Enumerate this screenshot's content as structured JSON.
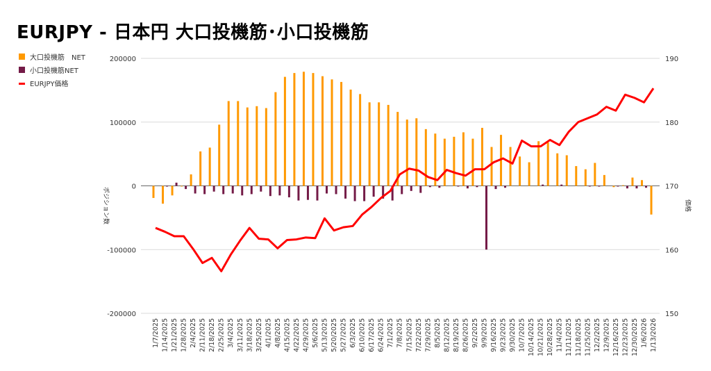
{
  "chart_data": {
    "type": "bar+line",
    "title": "EURJPY - 日本円 大口投機筋･小口投機筋",
    "ylabel": "ポジション数",
    "y2label": "価格",
    "ylim": [
      -200000,
      200000
    ],
    "y2lim": [
      150,
      190
    ],
    "yticks": [
      "200000",
      "100000",
      "0",
      "-100000",
      "-200000"
    ],
    "y2ticks": [
      "190",
      "180",
      "170",
      "160",
      "150"
    ],
    "grid": true,
    "legend_position": "left",
    "categories": [
      "1/7/2025",
      "1/14/2025",
      "1/21/2025",
      "1/28/2025",
      "2/4/2025",
      "2/11/2025",
      "2/18/2025",
      "2/25/2025",
      "3/4/2025",
      "3/11/2025",
      "3/18/2025",
      "3/25/2025",
      "4/1/2025",
      "4/8/2025",
      "4/15/2025",
      "4/22/2025",
      "4/29/2025",
      "5/6/2025",
      "5/13/2025",
      "5/20/2025",
      "5/27/2025",
      "6/3/2025",
      "6/10/2025",
      "6/17/2025",
      "6/24/2025",
      "7/1/2025",
      "7/8/2025",
      "7/15/2025",
      "7/22/2025",
      "7/29/2025",
      "8/5/2025",
      "8/12/2025",
      "8/19/2025",
      "8/26/2025",
      "9/2/2025",
      "9/9/2025",
      "9/16/2025",
      "9/23/2025",
      "9/30/2025",
      "10/7/2025",
      "10/14/2025",
      "10/21/2025",
      "10/28/2025",
      "11/4/2025",
      "11/11/2025",
      "11/18/2025",
      "11/25/2025",
      "12/2/2025",
      "12/9/2025",
      "12/16/2025",
      "12/23/2025",
      "12/30/2025",
      "1/6/2026",
      "1/13/2026"
    ],
    "series": [
      {
        "name": "大口投機筋　NET",
        "type": "bar",
        "axis": "left",
        "color": "#ff9900",
        "values": [
          -19000,
          -28000,
          -15000,
          -1000,
          18000,
          54000,
          60000,
          96000,
          133000,
          133000,
          123000,
          125000,
          122000,
          147000,
          171000,
          177000,
          179000,
          177000,
          172000,
          167000,
          163000,
          151000,
          144000,
          131000,
          131000,
          127000,
          116000,
          104000,
          106000,
          89000,
          82000,
          74000,
          77000,
          84000,
          74000,
          91000,
          61000,
          80000,
          61000,
          46000,
          37000,
          70000,
          68000,
          51000,
          48000,
          31000,
          26000,
          36000,
          17000,
          -2000,
          1000,
          13000,
          9000,
          -45000
        ]
      },
      {
        "name": "小口投機筋NET",
        "type": "bar",
        "axis": "left",
        "color": "#741b47",
        "values": [
          0,
          -1000,
          5000,
          -5000,
          -12000,
          -13000,
          -9000,
          -13000,
          -12000,
          -15000,
          -13000,
          -9000,
          -16000,
          -15000,
          -18000,
          -23000,
          -22000,
          -23000,
          -12000,
          -13000,
          -20000,
          -24000,
          -24000,
          -17000,
          -20000,
          -23000,
          -13000,
          -8000,
          -11000,
          -2000,
          -3000,
          0,
          -1000,
          -4000,
          -2000,
          -100000,
          -5000,
          -3000,
          0,
          0,
          0,
          2000,
          0,
          2000,
          0,
          0,
          -1000,
          -1000,
          0,
          -1000,
          -4000,
          -4000,
          -3000,
          0
        ]
      },
      {
        "name": "EURJPY価格",
        "type": "line",
        "axis": "right",
        "color": "#ff0000",
        "values": [
          163.4,
          162.8,
          162.1,
          162.1,
          160.1,
          157.9,
          158.7,
          156.6,
          159.2,
          161.4,
          163.4,
          161.7,
          161.6,
          160.2,
          161.5,
          161.6,
          161.9,
          161.8,
          164.9,
          163.0,
          163.5,
          163.7,
          165.5,
          166.7,
          168.1,
          169.2,
          171.8,
          172.7,
          172.4,
          171.4,
          170.9,
          172.5,
          172.0,
          171.6,
          172.6,
          172.6,
          173.7,
          174.3,
          173.5,
          177.1,
          176.2,
          176.2,
          177.2,
          176.4,
          178.5,
          180.0,
          180.6,
          181.2,
          182.4,
          181.8,
          184.3,
          183.8,
          183.1,
          185.3
        ]
      }
    ]
  }
}
